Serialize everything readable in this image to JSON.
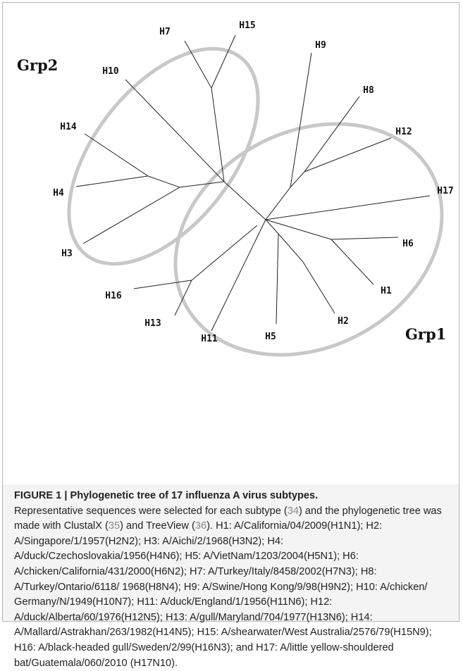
{
  "figure": {
    "groups": [
      "Grp2",
      "Grp1"
    ],
    "labels": [
      "H7",
      "H15",
      "H9",
      "H10",
      "H8",
      "H12",
      "H14",
      "H17",
      "H4",
      "H6",
      "H3",
      "H1",
      "H16",
      "H2",
      "H13",
      "H5",
      "H11"
    ]
  },
  "caption": {
    "title": "FIGURE 1 | Phylogenetic tree of 17 influenza A virus subtypes.",
    "segments": [
      "Representative sequences were selected for each subtype (",
      "34",
      ") and the phylogenetic tree was made with ClustalX (",
      "35",
      ") and TreeView (",
      "36",
      "). H1: A/California/04/2009(H1N1); H2: A/Singapore/1/1957(H2N2); H3: A/Aichi/2/1968(H3N2); H4: A/duck/Czechoslovakia/1956(H4N6); H5: A/VietNam/1203/2004(H5N1); H6: A/chicken/California/431/2000(H6N2); H7: A/Turkey/Italy/8458/2002(H7N3); H8: A/Turkey/Ontario/6118/ 1968(H8N4); H9: A/Swine/Hong Kong/9/98(H9N2); H10: A/chicken/ Germany/N/1949(H10N7); H11: A/duck/England/1/1956(H11N6); H12: A/duck/Alberta/60/1976(H12N5); H13: A/gull/Maryland/704/1977(H13N6); H14: A/Mallard/Astrakhan/263/1982(H14N5); H15: A/shearwater/West Australia/2576/79(H15N9); H16: A/black-headed gull/Sweden/2/99(H16N3); and H17: A/little yellow-shouldered bat/Guatemala/060/2010 (H17N10)."
    ]
  }
}
